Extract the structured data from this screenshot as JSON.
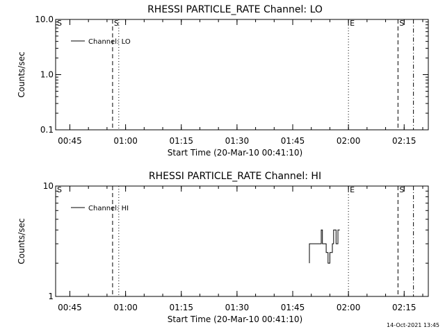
{
  "footer": {
    "timestamp": "14-Oct-2021 13:45"
  },
  "chart_data": [
    {
      "type": "line",
      "title": "RHESSI PARTICLE_RATE Channel: LO",
      "xlabel": "Start Time (20-Mar-10 00:41:10)",
      "ylabel": "Counts/sec",
      "yscale": "log",
      "ylim": [
        0.1,
        10.0
      ],
      "yticks": [
        0.1,
        1.0,
        10.0
      ],
      "ytick_labels": [
        "0.1",
        "1.0",
        "10.0"
      ],
      "xlim": [
        "00:41:10",
        "02:21:30"
      ],
      "xticks": [
        "00:45",
        "01:00",
        "01:15",
        "01:30",
        "01:45",
        "02:00",
        "02:15"
      ],
      "legend": {
        "label": "Channel: LO",
        "position": "top-left"
      },
      "series": [
        {
          "name": "Channel: LO",
          "points": []
        }
      ],
      "markers": [
        {
          "time": "00:56:30",
          "style": "dashed",
          "label": "S"
        },
        {
          "time": "00:58:10",
          "style": "dotted",
          "label": ""
        },
        {
          "time": "02:00:00",
          "style": "dotted",
          "label": "E"
        },
        {
          "time": "02:13:20",
          "style": "dashed",
          "label": "S"
        },
        {
          "time": "02:17:30",
          "style": "dashdot",
          "label": ""
        }
      ],
      "left_label": "S"
    },
    {
      "type": "line",
      "title": "RHESSI PARTICLE_RATE Channel: HI",
      "xlabel": "Start Time (20-Mar-10 00:41:10)",
      "ylabel": "Counts/sec",
      "yscale": "log",
      "ylim": [
        1,
        10
      ],
      "yticks": [
        1,
        10
      ],
      "ytick_labels": [
        "1",
        "10"
      ],
      "xlim": [
        "00:41:10",
        "02:21:30"
      ],
      "xticks": [
        "00:45",
        "01:00",
        "01:15",
        "01:30",
        "01:45",
        "02:00",
        "02:15"
      ],
      "legend": {
        "label": "Channel: HI",
        "position": "top-left"
      },
      "series": [
        {
          "name": "Channel: HI",
          "points": [
            [
              "01:49:30",
              2.0
            ],
            [
              "01:49:30",
              3.0
            ],
            [
              "01:51:30",
              3.0
            ],
            [
              "01:52:40",
              3.0
            ],
            [
              "01:52:40",
              4.0
            ],
            [
              "01:53:00",
              4.0
            ],
            [
              "01:53:00",
              3.0
            ],
            [
              "01:53:30",
              3.0
            ],
            [
              "01:54:00",
              3.0
            ],
            [
              "01:54:00",
              2.5
            ],
            [
              "01:54:30",
              2.5
            ],
            [
              "01:54:30",
              2.0
            ],
            [
              "01:55:00",
              2.0
            ],
            [
              "01:55:00",
              2.5
            ],
            [
              "01:55:40",
              2.5
            ],
            [
              "01:55:40",
              3.0
            ],
            [
              "01:56:00",
              3.0
            ],
            [
              "01:56:00",
              4.0
            ],
            [
              "01:56:40",
              4.0
            ],
            [
              "01:56:40",
              3.0
            ],
            [
              "01:57:10",
              3.0
            ],
            [
              "01:57:10",
              4.0
            ],
            [
              "01:57:40",
              4.0
            ]
          ]
        }
      ],
      "markers": [
        {
          "time": "00:56:30",
          "style": "dashed",
          "label": ""
        },
        {
          "time": "00:58:10",
          "style": "dotted",
          "label": ""
        },
        {
          "time": "02:00:00",
          "style": "dotted",
          "label": "E"
        },
        {
          "time": "02:13:20",
          "style": "dashed",
          "label": "S"
        },
        {
          "time": "02:17:30",
          "style": "dashdot",
          "label": ""
        }
      ],
      "left_label": "S"
    }
  ]
}
